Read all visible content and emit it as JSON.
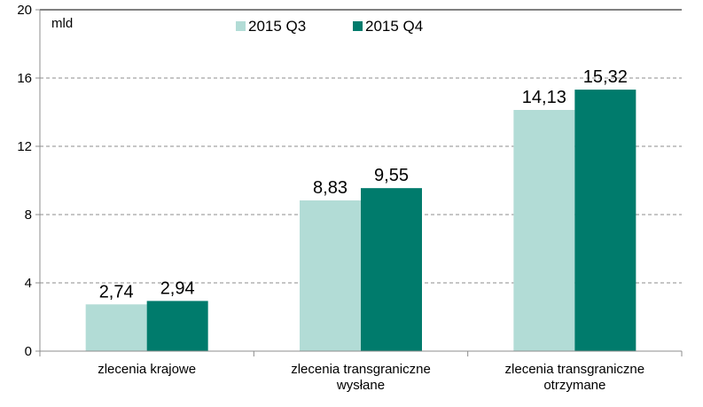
{
  "chart_data": {
    "type": "bar",
    "unit_label": "mld",
    "categories": [
      [
        "zlecenia krajowe"
      ],
      [
        "zlecenia transgraniczne",
        "wysłane"
      ],
      [
        "zlecenia transgraniczne",
        "otrzymane"
      ]
    ],
    "series": [
      {
        "name": "2015 Q3",
        "color": "#b2dcd6",
        "values": [
          2.74,
          8.83,
          14.13
        ],
        "labels": [
          "2,74",
          "8,83",
          "14,13"
        ]
      },
      {
        "name": "2015 Q4",
        "color": "#007b6c",
        "values": [
          2.94,
          9.55,
          15.32
        ],
        "labels": [
          "2,94",
          "9,55",
          "15,32"
        ]
      }
    ],
    "ylim": [
      0,
      20
    ],
    "yticks": [
      0,
      4,
      8,
      12,
      16,
      20
    ],
    "grid": true,
    "legend": "top"
  }
}
